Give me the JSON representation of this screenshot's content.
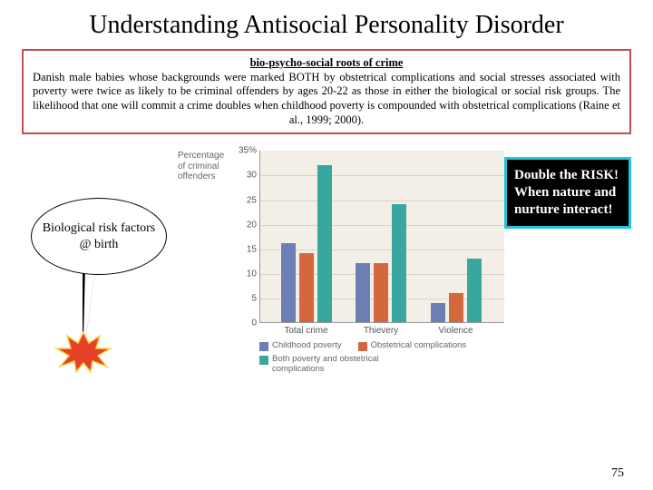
{
  "title": "Understanding Antisocial Personality Disorder",
  "info_box": {
    "border_color": "#c0504d",
    "subtitle": "bio-psycho-social roots of crime",
    "body": "Danish male babies whose backgrounds were marked BOTH by obstetrical complications and social stresses associated with poverty were twice as likely to be criminal offenders by ages 20-22 as those in either the biological or social risk groups. The likelihood that one will commit a crime doubles when childhood poverty is compounded with obstetrical complications (Raine et al., 1999; 2000)."
  },
  "callout": {
    "text": "Biological risk factors @ birth"
  },
  "chart": {
    "type": "bar",
    "ylabel_line1": "Percentage",
    "ylabel_line2": "of criminal",
    "ylabel_line3": "offenders",
    "ymax": 35,
    "yticks": [
      0,
      5,
      10,
      15,
      20,
      25,
      30,
      "35%"
    ],
    "plot_bg": "#f3eee6",
    "grid_color": "#d9d2c5",
    "categories": [
      "Total crime",
      "Thievery",
      "Violence"
    ],
    "series": [
      {
        "label": "Childhood poverty",
        "color": "#6b7fb5",
        "values": [
          16,
          12,
          4
        ]
      },
      {
        "label": "Obstetrical complications",
        "color": "#d3683e",
        "values": [
          14,
          12,
          6
        ]
      },
      {
        "label": "Both poverty and obstetrical complications",
        "color": "#3aa6a0",
        "values": [
          32,
          24,
          13
        ]
      }
    ]
  },
  "risk_box": {
    "border_color": "#20c4e0",
    "text": "Double the RISK! When nature and nurture interact!"
  },
  "burst": {
    "fill": "#e74028",
    "stroke": "#f7d84a"
  },
  "page_number": "75"
}
